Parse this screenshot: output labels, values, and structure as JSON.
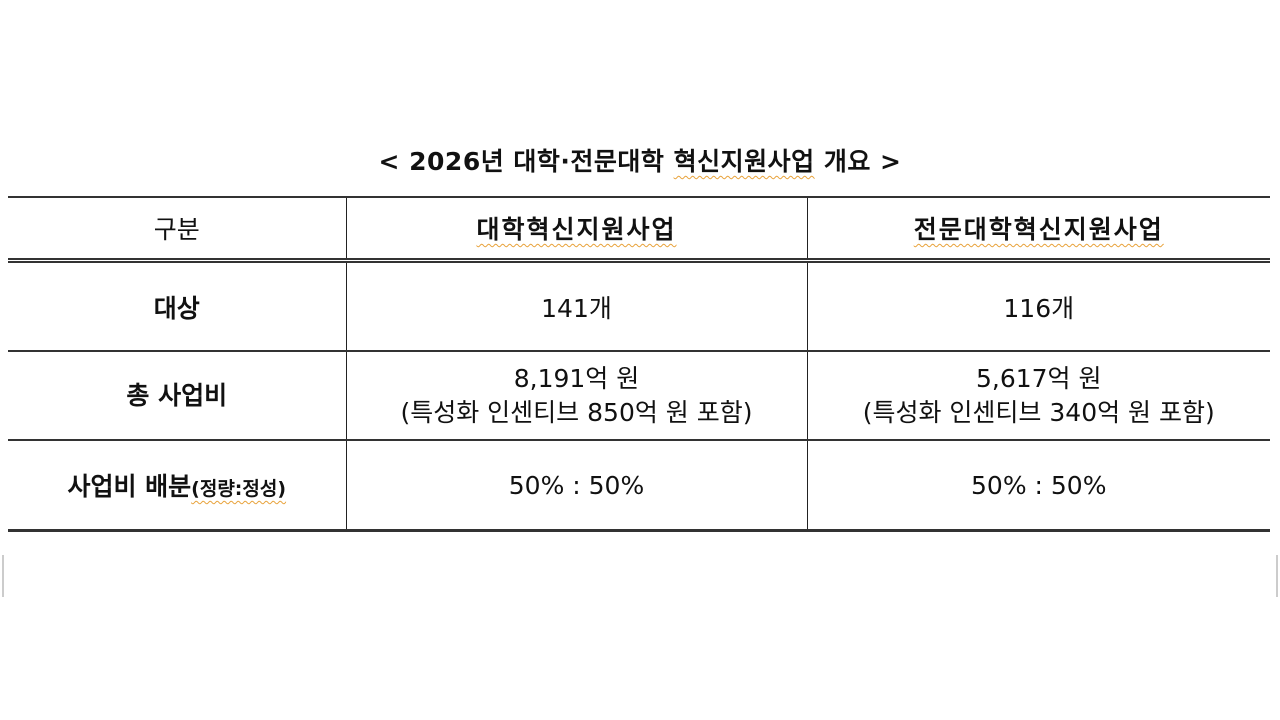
{
  "title": {
    "prefix": "< 2026년 대학·전문대학 ",
    "underlined": "혁신지원사업",
    "suffix": " 개요 >"
  },
  "table": {
    "headers": [
      "구분",
      "대학혁신지원사업",
      "전문대학혁신지원사업"
    ],
    "rows": [
      {
        "label": "대상",
        "col1": "141개",
        "col2": "116개"
      },
      {
        "label": "총 사업비",
        "col1": "8,191억 원",
        "col1_note": "(특성화 인센티브 850억 원 포함)",
        "col2": "5,617억 원",
        "col2_note": "(특성화 인센티브 340억 원 포함)"
      },
      {
        "label": "사업비 배분",
        "label_suffix": "(정량:정성)",
        "col1": "50% : 50%",
        "col2": "50% : 50%"
      }
    ]
  }
}
